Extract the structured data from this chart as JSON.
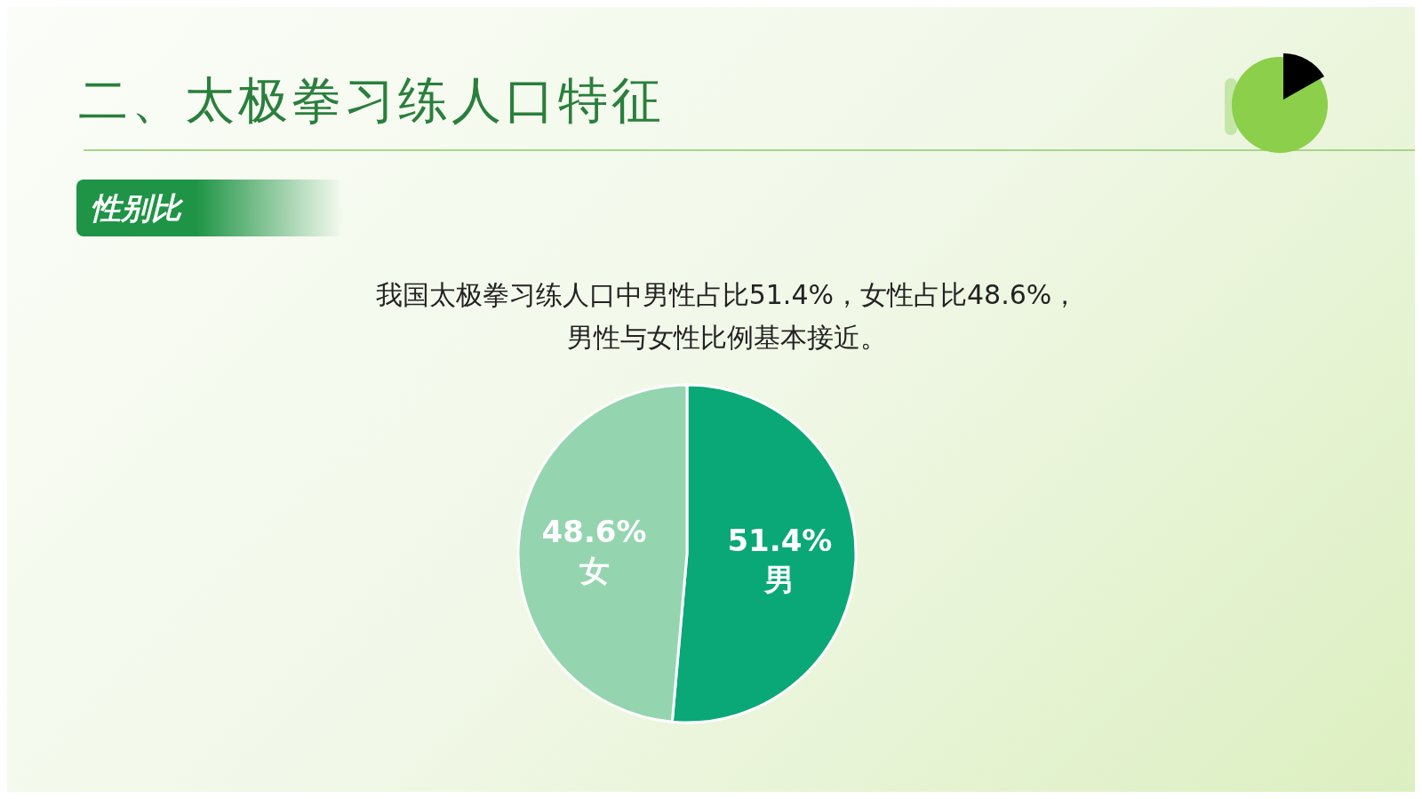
{
  "chart_data": {
    "type": "pie",
    "title": "二、太极拳习练人口特征",
    "subtitle": "性别比",
    "annotations": [
      "我国太极拳习练人口中男性占比51.4%，女性占比48.6%，男性与女性比例基本接近。"
    ],
    "categories": [
      "男",
      "女"
    ],
    "values": [
      51.4,
      48.6
    ],
    "colors": [
      "#0aa877",
      "#94d5b0"
    ],
    "value_labels": [
      "51.4%",
      "48.6%"
    ]
  }
}
